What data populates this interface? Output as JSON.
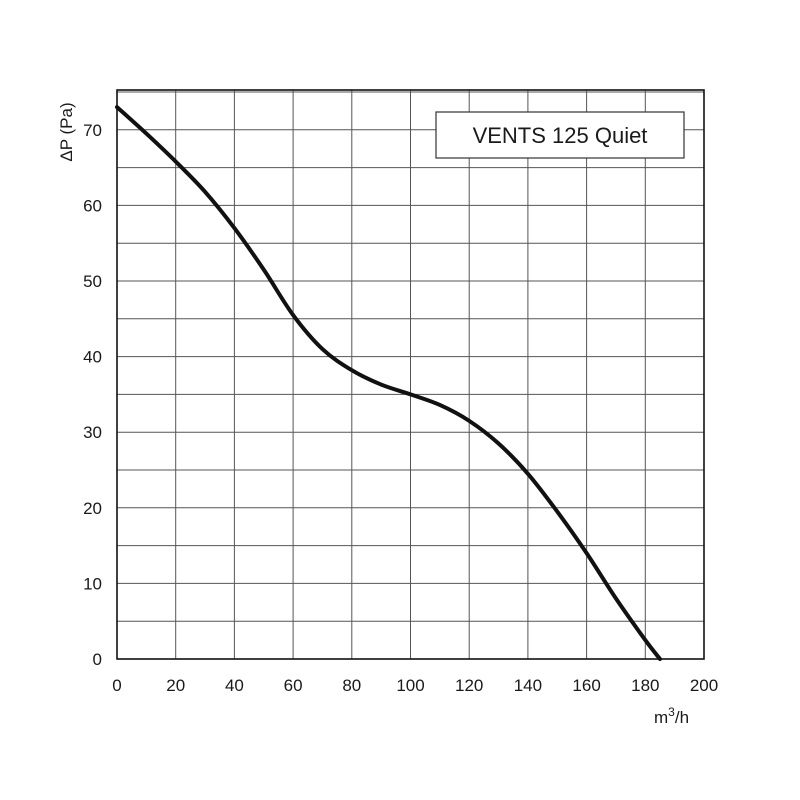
{
  "chart_data": {
    "type": "line",
    "title": "VENTS 125 Quiet",
    "xlabel_base": "m",
    "xlabel_sup": "3",
    "xlabel_rest": "/h",
    "ylabel": "ΔP (Pa)",
    "xlim": [
      0,
      200
    ],
    "ylim": [
      0,
      75
    ],
    "xticks": [
      0,
      20,
      40,
      60,
      80,
      100,
      120,
      140,
      160,
      180,
      200
    ],
    "yticks": [
      0,
      10,
      20,
      30,
      40,
      50,
      60,
      70
    ],
    "grid": true,
    "grid_x_step": 20,
    "grid_y_step": 5,
    "legend_position": "top-right",
    "series": [
      {
        "name": "VENTS 125 Quiet",
        "color": "#111111",
        "x": [
          0,
          10,
          20,
          30,
          40,
          50,
          60,
          70,
          80,
          90,
          100,
          110,
          120,
          130,
          140,
          150,
          160,
          170,
          180,
          185
        ],
        "y": [
          73,
          69.5,
          65.8,
          61.8,
          57,
          51.5,
          45.5,
          41,
          38.2,
          36.3,
          35,
          33.6,
          31.5,
          28.5,
          24.5,
          19.5,
          14,
          8,
          2.5,
          0
        ]
      }
    ]
  }
}
